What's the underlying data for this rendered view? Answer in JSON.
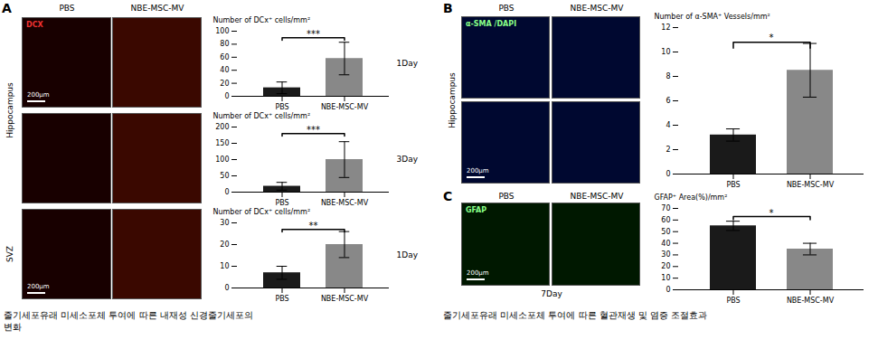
{
  "chart_data": [
    {
      "type": "bar",
      "categories": [
        "PBS",
        "NBE-MSC-MV"
      ],
      "values": [
        13,
        58
      ],
      "errors": [
        9,
        25
      ],
      "colors": [
        "#1a1a1a",
        "#888888"
      ],
      "ylabel": "Number of DCx⁺ cells/mm²",
      "ylim": [
        0,
        100
      ],
      "yticks": [
        0,
        20,
        40,
        60,
        80,
        100
      ],
      "annotations": [
        {
          "kind": "significance",
          "text": "***"
        },
        {
          "kind": "day_label",
          "text": "1Day"
        }
      ]
    },
    {
      "type": "bar",
      "categories": [
        "PBS",
        "NBE-MSC-MV"
      ],
      "values": [
        18,
        100
      ],
      "errors": [
        12,
        55
      ],
      "colors": [
        "#1a1a1a",
        "#888888"
      ],
      "ylabel": "Number of DCx⁺ cells/mm²",
      "ylim": [
        0,
        200
      ],
      "yticks": [
        0,
        50,
        100,
        150,
        200
      ],
      "annotations": [
        {
          "kind": "significance",
          "text": "***"
        },
        {
          "kind": "day_label",
          "text": "3Day"
        }
      ]
    },
    {
      "type": "bar",
      "categories": [
        "PBS",
        "NBE-MSC-MV"
      ],
      "values": [
        7,
        20
      ],
      "errors": [
        3,
        6
      ],
      "colors": [
        "#1a1a1a",
        "#888888"
      ],
      "ylabel": "Number of DCx⁺ cells/mm²",
      "ylim": [
        0,
        30
      ],
      "yticks": [
        0,
        10,
        20,
        30
      ],
      "annotations": [
        {
          "kind": "significance",
          "text": "**"
        },
        {
          "kind": "day_label",
          "text": "1Day"
        }
      ]
    },
    {
      "type": "bar",
      "categories": [
        "PBS",
        "NBE-MSC-MV"
      ],
      "values": [
        3.2,
        8.5
      ],
      "errors": [
        0.5,
        2.2
      ],
      "colors": [
        "#1a1a1a",
        "#888888"
      ],
      "ylabel": "Number of α-SMA⁺ Vessels/mm²",
      "ylim": [
        0,
        12
      ],
      "yticks": [
        0,
        2,
        4,
        6,
        8,
        10,
        12
      ],
      "annotations": [
        {
          "kind": "significance",
          "text": "*"
        }
      ]
    },
    {
      "type": "bar",
      "categories": [
        "PBS",
        "NBE-MSC-MV"
      ],
      "values": [
        55,
        35
      ],
      "errors": [
        4,
        5
      ],
      "colors": [
        "#1a1a1a",
        "#888888"
      ],
      "ylabel": "GFAP⁺ Area(%)/mm²",
      "ylim": [
        0,
        70
      ],
      "yticks": [
        0,
        10,
        20,
        30,
        40,
        50,
        60,
        70
      ],
      "annotations": [
        {
          "kind": "significance",
          "text": "*"
        }
      ]
    }
  ],
  "image_colors": [
    "#180000",
    "#3a0800",
    "#000830",
    "#001800"
  ],
  "annotations": [
    {
      "kind": "panel_label",
      "text": "A"
    },
    {
      "kind": "panel_label",
      "text": "B"
    },
    {
      "kind": "panel_label",
      "text": "C"
    },
    {
      "kind": "column_header",
      "text": "PBS"
    },
    {
      "kind": "column_header",
      "text": "NBE-MSC-MV"
    },
    {
      "kind": "region_label",
      "text": "Hippocampus"
    },
    {
      "kind": "region_label",
      "text": "SVZ"
    },
    {
      "kind": "image_label",
      "text": "DCX",
      "color": "#ee3333"
    },
    {
      "kind": "image_label",
      "text": "α-SMA /DAPI",
      "color": "#88ff88"
    },
    {
      "kind": "image_label",
      "text": "GFAP",
      "color": "#88ff88"
    },
    {
      "kind": "scale_label",
      "text": "200μm"
    },
    {
      "kind": "group_label",
      "text": "7Day"
    },
    {
      "kind": "caption",
      "text": [
        "줄기세포유래 미세소포체 투여에 따른 내재성 신경줄기세포의",
        "변화"
      ]
    },
    {
      "kind": "caption",
      "text": [
        "줄기세포유래 미세소포체 투여에 따른 혈관재생 및 염증 조절효과"
      ]
    }
  ]
}
